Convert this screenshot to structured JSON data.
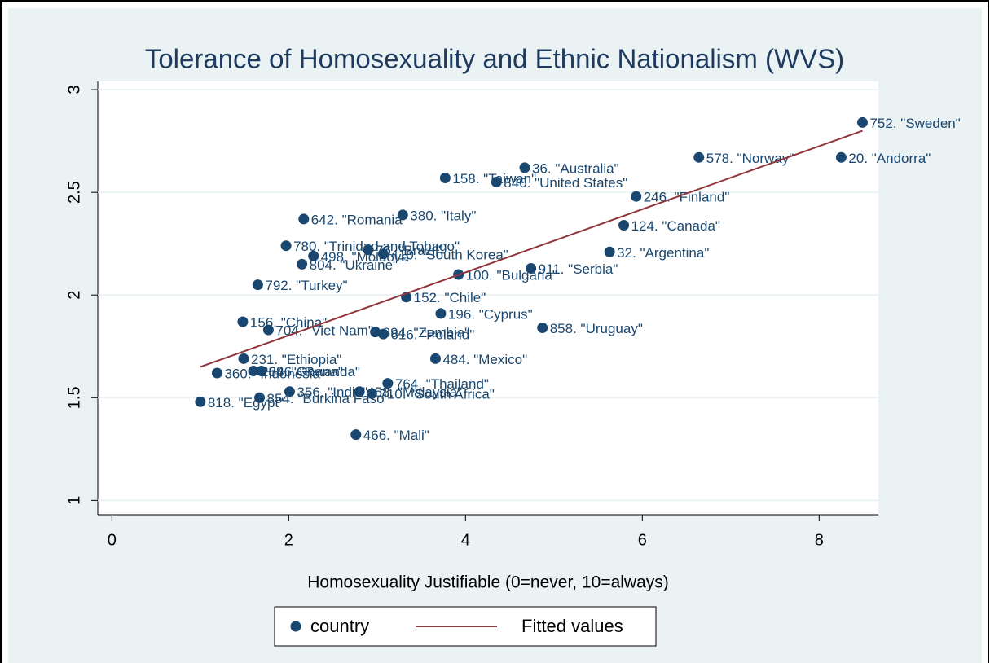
{
  "chart_data": {
    "type": "scatter",
    "title": "Tolerance of Homosexuality and Ethnic Nationalism (WVS)",
    "x_label": "Homosexuality Justifiable (0=never, 10=always)",
    "xlim": [
      -0.16,
      8.67
    ],
    "xticks": [
      0,
      2,
      4,
      6,
      8
    ],
    "ylim": [
      0.93,
      3.04
    ],
    "yticks": [
      1,
      1.5,
      2,
      2.5,
      3
    ],
    "grid": true,
    "legend": "bottom",
    "series": [
      {
        "name": "country",
        "color": "#1a476f",
        "kind": "scatter",
        "x": [
          8.49,
          6.64,
          8.25,
          4.67,
          3.77,
          4.35,
          5.93,
          2.17,
          3.29,
          5.79,
          1.97,
          5.63,
          2.28,
          3.07,
          2.9,
          2.15,
          3.92,
          4.74,
          1.65,
          3.33,
          3.72,
          1.48,
          1.77,
          2.98,
          3.07,
          4.87,
          1.49,
          3.66,
          1.19,
          1.6,
          1.69,
          3.12,
          2.01,
          2.8,
          2.94,
          1.0,
          1.67,
          2.76
        ],
        "values": [
          2.84,
          2.67,
          2.67,
          2.62,
          2.57,
          2.55,
          2.48,
          2.37,
          2.39,
          2.34,
          2.24,
          2.21,
          2.19,
          2.2,
          2.22,
          2.15,
          2.1,
          2.13,
          2.05,
          1.99,
          1.91,
          1.87,
          1.83,
          1.82,
          1.81,
          1.84,
          1.69,
          1.69,
          1.62,
          1.63,
          1.63,
          1.57,
          1.53,
          1.53,
          1.52,
          1.48,
          1.5,
          1.32
        ],
        "labels": [
          "752. \"Sweden\"",
          "578. \"Norway\"",
          "20. \"Andorra\"",
          "36. \"Australia\"",
          "158. \"Taiwan\"",
          "840. \"United States\"",
          "246. \"Finland\"",
          "642. \"Romania\"",
          "380. \"Italy\"",
          "124. \"Canada\"",
          "780. \"Trinidad and Tobago\"",
          "32. \"Argentina\"",
          "498. \"Moldova\"",
          "410. \"South Korea\"",
          "76. \"Brazil\"",
          "804. \"Ukraine\"",
          "100. \"Bulgaria\"",
          "911. \"Serbia\"",
          "792. \"Turkey\"",
          "152. \"Chile\"",
          "196. \"Cyprus\"",
          "156. \"China\"",
          "704. \"Viet Nam\"",
          "894. \"Zambia\"",
          "616. \"Poland\"",
          "858. \"Uruguay\"",
          "231. \"Ethiopia\"",
          "484. \"Mexico\"",
          "360. \"Indonesia\"",
          "288. \"Ghana\"",
          "646. \"Rwanda\"",
          "764. \"Thailand\"",
          "356. \"India\"",
          "458. \"Malaysia\"",
          "710. \"South Africa\"",
          "818. \"Egypt\"",
          "854. \"Burkina Faso\"",
          "466. \"Mali\""
        ]
      },
      {
        "name": "Fitted values",
        "color": "#90353b",
        "kind": "line",
        "x": [
          1.0,
          8.49
        ],
        "values": [
          1.65,
          2.8
        ]
      }
    ]
  }
}
